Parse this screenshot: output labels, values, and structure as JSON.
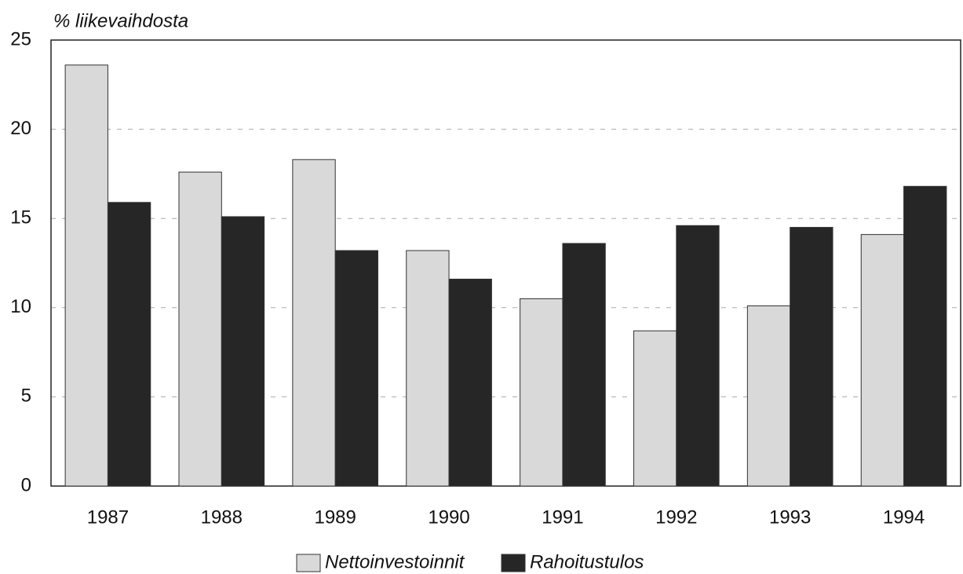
{
  "chart_data": {
    "type": "bar",
    "y_label": "% liikevaihdosta",
    "categories": [
      "1987",
      "1988",
      "1989",
      "1990",
      "1991",
      "1992",
      "1993",
      "1994"
    ],
    "series": [
      {
        "name": "Nettoinvestoinnit",
        "color": "#d9d9d9",
        "values": [
          23.6,
          17.6,
          18.3,
          13.2,
          10.5,
          8.7,
          10.1,
          14.1
        ]
      },
      {
        "name": "Rahoitustulos",
        "color": "#262626",
        "values": [
          15.9,
          15.1,
          13.2,
          11.6,
          13.6,
          14.6,
          14.5,
          16.8
        ]
      }
    ],
    "ylim": [
      0,
      25
    ],
    "yticks": [
      0,
      5,
      10,
      15,
      20,
      25
    ],
    "grid": true,
    "legend": "bottom"
  }
}
